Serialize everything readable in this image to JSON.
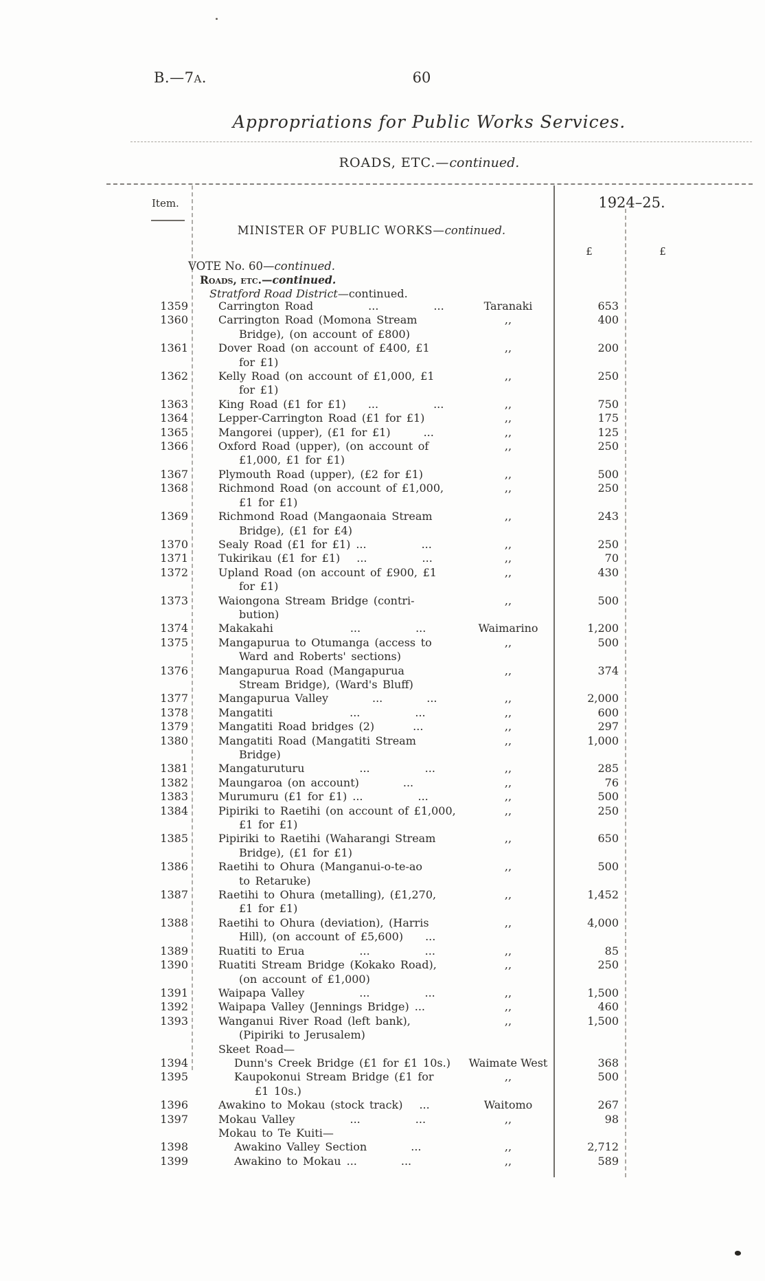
{
  "page": {
    "doc_ref": "B.—7a.",
    "page_number": "60",
    "title": "Appropriations for Public Works Services.",
    "section_main": "ROADS, ETC.—",
    "section_continued": "continued."
  },
  "table": {
    "item_header": "Item.",
    "year_header": "1924–25.",
    "currency_symbol": "£",
    "minister_heading_main": "MINISTER OF PUBLIC WORKS—",
    "minister_heading_continued": "continued.",
    "vote_heading_main": "VOTE No. 60—",
    "vote_heading_continued": "continued.",
    "subvote_heading_main": "Roads, etc.—",
    "subvote_heading_continued": "continued.",
    "district_heading_main": "Stratford Road District",
    "district_heading_continued": "—continued.",
    "rows": [
      {
        "item": "1359",
        "desc": "Carrington Road     ...     ...",
        "district": "Taranaki",
        "amount": "653"
      },
      {
        "item": "1360",
        "desc": "Carrington Road (Momona Stream\nBridge), (on account of £800)",
        "district": ",,",
        "amount": "400"
      },
      {
        "item": "1361",
        "desc": "Dover Road (on account of £400, £1\nfor £1)",
        "district": ",,",
        "amount": "200"
      },
      {
        "item": "1362",
        "desc": "Kelly Road (on account of £1,000, £1\nfor £1)",
        "district": ",,",
        "amount": "250"
      },
      {
        "item": "1363",
        "desc": "King Road (£1 for £1)  ...     ...",
        "district": ",,",
        "amount": "750"
      },
      {
        "item": "1364",
        "desc": "Lepper-Carrington Road (£1 for £1)",
        "district": ",,",
        "amount": "175"
      },
      {
        "item": "1365",
        "desc": "Mangorei (upper), (£1 for £1)   ...",
        "district": ",,",
        "amount": "125"
      },
      {
        "item": "1366",
        "desc": "Oxford Road (upper), (on account of\n£1,000, £1 for £1)",
        "district": ",,",
        "amount": "250"
      },
      {
        "item": "1367",
        "desc": "Plymouth Road (upper), (£2 for £1)",
        "district": ",,",
        "amount": "500"
      },
      {
        "item": "1368",
        "desc": "Richmond Road (on account of £1,000,\n£1 for £1)",
        "district": ",,",
        "amount": "250"
      },
      {
        "item": "1369",
        "desc": "Richmond Road (Mangaonaia Stream\nBridge), (£1 for £4)",
        "district": ",,",
        "amount": "243"
      },
      {
        "item": "1370",
        "desc": "Sealy Road (£1 for £1) ...     ...",
        "district": ",,",
        "amount": "250"
      },
      {
        "item": "1371",
        "desc": "Tukirikau (£1 for £1)  ...     ...",
        "district": ",,",
        "amount": "70"
      },
      {
        "item": "1372",
        "desc": "Upland Road (on account of £900, £1\nfor £1)",
        "district": ",,",
        "amount": "430"
      },
      {
        "item": "1373",
        "desc": "Waiongona Stream Bridge (contri-\nbution)",
        "district": ",,",
        "amount": "500"
      },
      {
        "item": "1374",
        "desc": "Makakahi       ...     ...",
        "district": "Waimarino",
        "amount": "1,200"
      },
      {
        "item": "1375",
        "desc": "Mangapurua to Otumanga (access to\nWard and Roberts' sections)",
        "district": ",,",
        "amount": "500"
      },
      {
        "item": "1376",
        "desc": "Mangapurua Road (Mangapurua\nStream Bridge), (Ward's Bluff)",
        "district": ",,",
        "amount": "374"
      },
      {
        "item": "1377",
        "desc": "Mangapurua Valley    ...    ...",
        "district": ",,",
        "amount": "2,000"
      },
      {
        "item": "1378",
        "desc": "Mangatiti       ...     ...",
        "district": ",,",
        "amount": "600"
      },
      {
        "item": "1379",
        "desc": "Mangatiti Road bridges (2)    ...",
        "district": ",,",
        "amount": "297"
      },
      {
        "item": "1380",
        "desc": "Mangatiti Road (Mangatiti Stream\nBridge)",
        "district": ",,",
        "amount": "1,000"
      },
      {
        "item": "1381",
        "desc": "Mangaturuturu     ...     ...",
        "district": ",,",
        "amount": "285"
      },
      {
        "item": "1382",
        "desc": "Maungaroa (on account)    ...",
        "district": ",,",
        "amount": "76"
      },
      {
        "item": "1383",
        "desc": "Murumuru (£1 for £1) ...     ...",
        "district": ",,",
        "amount": "500"
      },
      {
        "item": "1384",
        "desc": "Pipiriki to Raetihi (on account of £1,000,\n£1 for £1)",
        "district": ",,",
        "amount": "250"
      },
      {
        "item": "1385",
        "desc": "Pipiriki to Raetihi (Waharangi Stream\nBridge), (£1 for £1)",
        "district": ",,",
        "amount": "650"
      },
      {
        "item": "1386",
        "desc": "Raetihi to Ohura (Manganui-o-te-ao\nto Retaruke)",
        "district": ",,",
        "amount": "500"
      },
      {
        "item": "1387",
        "desc": "Raetihi to Ohura (metalling), (£1,270,\n£1 for £1)",
        "district": ",,",
        "amount": "1,452"
      },
      {
        "item": "1388",
        "desc": "Raetihi to Ohura (deviation), (Harris\nHill), (on account of £5,600)  ...",
        "district": ",,",
        "amount": "4,000"
      },
      {
        "item": "1389",
        "desc": "Ruatiti to Erua     ...     ...",
        "district": ",,",
        "amount": "85"
      },
      {
        "item": "1390",
        "desc": "Ruatiti Stream Bridge (Kokako Road),\n(on account of £1,000)",
        "district": ",,",
        "amount": "250"
      },
      {
        "item": "1391",
        "desc": "Waipapa Valley     ...     ...",
        "district": ",,",
        "amount": "1,500"
      },
      {
        "item": "1392",
        "desc": "Waipapa Valley (Jennings Bridge) ...",
        "district": ",,",
        "amount": "460"
      },
      {
        "item": "1393",
        "desc": "Wanganui River Road (left bank),\n(Pipiriki to Jerusalem)",
        "district": ",,",
        "amount": "1,500"
      },
      {
        "type": "group",
        "desc": "Skeet Road—"
      },
      {
        "item": "1394",
        "sub": true,
        "desc": "Dunn's Creek Bridge (£1 for £1 10s.)",
        "district": "Waimate West",
        "amount": "368"
      },
      {
        "item": "1395",
        "sub": true,
        "desc": "Kaupokonui Stream Bridge (£1 for\n£1 10s.)",
        "district": ",,",
        "amount": "500"
      },
      {
        "item": "1396",
        "desc": "Awakino to Mokau (stock track)  ...",
        "district": "Waitomo",
        "amount": "267"
      },
      {
        "item": "1397",
        "desc": "Mokau Valley     ...     ...",
        "district": ",,",
        "amount": "98"
      },
      {
        "type": "group",
        "desc": "Mokau to Te Kuiti—"
      },
      {
        "item": "1398",
        "sub": true,
        "desc": "Awakino Valley Section    ...",
        "district": ",,",
        "amount": "2,712"
      },
      {
        "item": "1399",
        "sub": true,
        "desc": "Awakino to Mokau ...    ...",
        "district": ",,",
        "amount": "589"
      }
    ]
  }
}
